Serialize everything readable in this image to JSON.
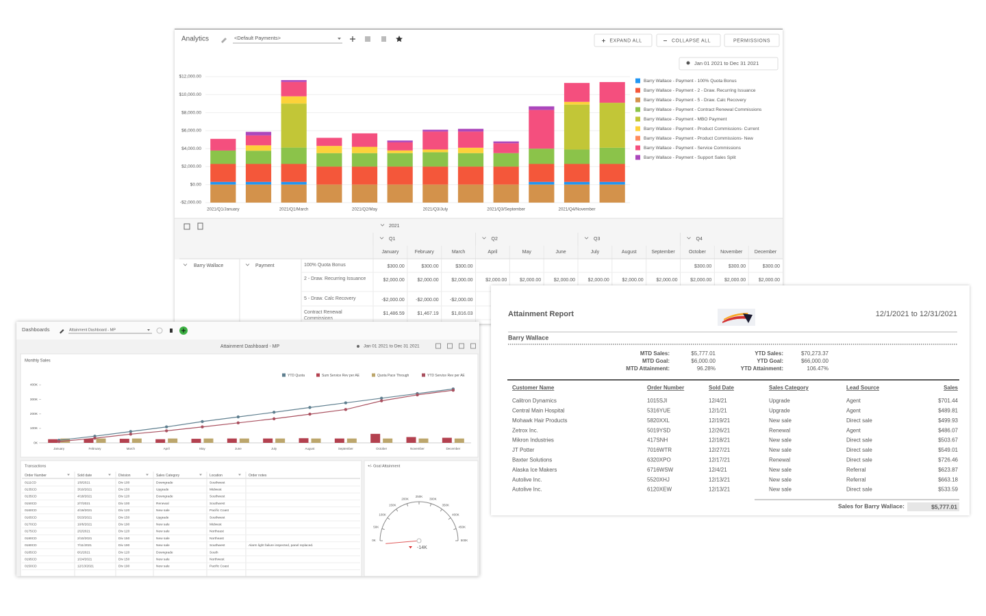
{
  "analytics": {
    "title": "Analytics",
    "view": "<Default Payments>",
    "buttons": [
      "EXPAND ALL",
      "COLLAPSE ALL",
      "PERMISSIONS"
    ],
    "date_range": "Jan 01 2021 to Dec 31 2021",
    "chart": {
      "type": "bar",
      "stacked": true,
      "categories": [
        "2021/Q1/January",
        null,
        "2021/Q1/March",
        null,
        "2021/Q2/May",
        null,
        "2021/Q3/July",
        null,
        "2021/Q3/September",
        null,
        "2021/Q4/November",
        null
      ],
      "series": [
        {
          "name": "Barry Wallace - Payment - 100% Quota Bonus",
          "color": "#2196f3",
          "values": [
            300,
            300,
            300,
            0,
            0,
            0,
            0,
            0,
            0,
            300,
            300,
            300
          ]
        },
        {
          "name": "Barry Wallace - Payment - 2 - Draw. Recurring Issuance",
          "color": "#f4573a",
          "values": [
            2000,
            2000,
            2000,
            2000,
            2000,
            2000,
            2000,
            2000,
            2000,
            2000,
            2000,
            2000
          ]
        },
        {
          "name": "Barry Wallace - Payment - 5 - Draw. Calc Recovery",
          "color": "#d3924b",
          "values": [
            -2000,
            -2000,
            -2000,
            -2000,
            -2000,
            -2000,
            -2000,
            -2000,
            -2000,
            -2000,
            -2000,
            -2000
          ]
        },
        {
          "name": "Barry Wallace - Payment - Contract Renewal Commissions",
          "color": "#8bc34a",
          "values": [
            1487,
            1467,
            1816,
            1500,
            1500,
            1500,
            1600,
            1500,
            1500,
            1700,
            1600,
            1800
          ]
        },
        {
          "name": "Barry Wallace - Payment - MBO Payment",
          "color": "#c2c637",
          "values": [
            0,
            0,
            4900,
            0,
            0,
            0,
            0,
            0,
            0,
            0,
            5000,
            5000
          ]
        },
        {
          "name": "Barry Wallace - Payment - Product Commissions- Current",
          "color": "#fdd23a",
          "values": [
            0,
            600,
            800,
            800,
            700,
            300,
            300,
            600,
            0,
            0,
            300,
            0
          ]
        },
        {
          "name": "Barry Wallace - Payment - Product Commissions- New",
          "color": "#ff8a5c",
          "values": [
            0,
            0,
            0,
            0,
            0,
            0,
            0,
            0,
            0,
            0,
            0,
            0
          ]
        },
        {
          "name": "Barry Wallace - Payment - Service Commissions",
          "color": "#f44f7e",
          "values": [
            1300,
            1100,
            1600,
            900,
            1500,
            900,
            2000,
            1800,
            1100,
            4300,
            2100,
            2300
          ]
        },
        {
          "name": "Barry Wallace - Payment - Support Sales Split",
          "color": "#ab47bc",
          "values": [
            0,
            400,
            200,
            0,
            0,
            200,
            200,
            300,
            200,
            400,
            0,
            0
          ]
        }
      ],
      "ylim": [
        -2000,
        12000
      ],
      "yticks": [
        {
          "value": -2000,
          "label": "-$2,000.00"
        },
        {
          "value": 0,
          "label": "$0.00"
        },
        {
          "value": 2000,
          "label": "$2,000.00"
        },
        {
          "value": 4000,
          "label": "$4,000.00"
        },
        {
          "value": 6000,
          "label": "$6,000.00"
        },
        {
          "value": 8000,
          "label": "$8,000.00"
        },
        {
          "value": 10000,
          "label": "$10,000.00"
        },
        {
          "value": 12000,
          "label": "$12,000.00"
        }
      ],
      "grid": true
    },
    "pivot": {
      "year": "2021",
      "quarters": [
        "Q1",
        "Q2",
        "Q3",
        "Q4"
      ],
      "months": [
        "January",
        "February",
        "March",
        "April",
        "May",
        "June",
        "July",
        "August",
        "September",
        "October",
        "November",
        "December"
      ],
      "person": "Barry Wallace",
      "field": "Payment",
      "rows": [
        {
          "label": "100% Quota Bonus",
          "values": [
            "$300.00",
            "$300.00",
            "$300.00",
            null,
            null,
            null,
            null,
            null,
            null,
            "$300.00",
            "$300.00",
            "$300.00"
          ]
        },
        {
          "label": "2 - Draw. Recurring Issuance",
          "values": [
            "$2,000.00",
            "$2,000.00",
            "$2,000.00",
            "$2,000.00",
            "$2,000.00",
            "$2,000.00",
            "$2,000.00",
            "$2,000.00",
            "$2,000.00",
            "$2,000.00",
            "$2,000.00",
            "$2,000.00"
          ]
        },
        {
          "label": "5 - Draw. Calc Recovery",
          "values": [
            "-$2,000.00",
            "-$2,000.00",
            "-$2,000.00"
          ]
        },
        {
          "label": "Contract Renewal Commissions",
          "values": [
            "$1,486.59",
            "$1,467.19",
            "$1,816.03"
          ]
        }
      ]
    }
  },
  "dashboard": {
    "title": "Dashboards",
    "view": "Attainment Dashboard - MP",
    "heading": "Attainment Dashboard - MP",
    "date_range": "Jan 01 2021 to Dec 31 2021",
    "chart": {
      "type": "combo",
      "title": "Monthly Sales",
      "categories": [
        "January",
        "February",
        "March",
        "April",
        "May",
        "June",
        "July",
        "August",
        "September",
        "October",
        "November",
        "December"
      ],
      "series": [
        {
          "name": "YTD Quota",
          "color": "#5f7f8f",
          "type": "line",
          "values": [
            18,
            46,
            78,
            110,
            147,
            179,
            211,
            244,
            276,
            308,
            340,
            372
          ]
        },
        {
          "name": "Sum Service Rev per AE",
          "color": "#b3414f",
          "type": "bar",
          "values": [
            25,
            28,
            28,
            25,
            28,
            30,
            30,
            32,
            30,
            62,
            40,
            35
          ]
        },
        {
          "name": "Quota Pace Through",
          "color": "#bca66c",
          "type": "bar",
          "values": [
            30,
            30,
            30,
            30,
            30,
            30,
            30,
            30,
            30,
            30,
            30,
            30
          ]
        },
        {
          "name": "YTD Service Rev per AE",
          "color": "#a9505f",
          "type": "line",
          "values": [
            9,
            32,
            60,
            83,
            110,
            138,
            166,
            198,
            230,
            290,
            331,
            363
          ]
        }
      ],
      "ylim": [
        0,
        430
      ],
      "yticks": [
        {
          "value": 0,
          "label": "0K"
        },
        {
          "value": 100,
          "label": "100K"
        },
        {
          "value": 200,
          "label": "200K"
        },
        {
          "value": 300,
          "label": "300K"
        },
        {
          "value": 400,
          "label": "400K"
        }
      ],
      "grid": false
    },
    "transactions": {
      "title": "Transactions",
      "columns": [
        "Order Number",
        "Sold date",
        "Division",
        "Sales Category",
        "Location",
        "Order notes"
      ],
      "rows": [
        [
          "0111CD",
          "1/9/2021",
          "Div 100",
          "Downgrade",
          "Southwest",
          null
        ],
        [
          "0135CD",
          "3/10/2021",
          "Div 150",
          "Upgrade",
          "Midwest",
          null
        ],
        [
          "0135CD",
          "4/18/2021",
          "Div 120",
          "Downgrade",
          "Southwest",
          null
        ],
        [
          "0150CD",
          "2/7/2021",
          "Div 100",
          "Renewal",
          "Southwest",
          null
        ],
        [
          "0160CD",
          "4/19/2021",
          "Div 120",
          "New sale",
          "Pacific Coast",
          null
        ],
        [
          "0165CD",
          "5/23/2021",
          "Div 150",
          "Upgrade",
          "Southwest",
          null
        ],
        [
          "0170CD",
          "10/6/2021",
          "Div 190",
          "New sale",
          "Midwest",
          null
        ],
        [
          "0175CD",
          "2/2/2021",
          "Div 120",
          "New sale",
          "Northeast",
          null
        ],
        [
          "0180CD",
          "2/10/2021",
          "Div 150",
          "New sale",
          "Northeast",
          null
        ],
        [
          "0180CD",
          "7/11/2021",
          "Div 190",
          "New sale",
          "Southwest",
          "Alarm light failure inspected, panel replaced."
        ],
        [
          "0185CD",
          "6/1/2021",
          "Div 120",
          "Downgrade",
          "South",
          null
        ],
        [
          "0195CD",
          "1/24/2021",
          "Div 150",
          "New sale",
          "Northwest",
          null
        ],
        [
          "0150CD",
          "12/13/2021",
          "Div 190",
          "New sale",
          "Pacific Coast",
          null
        ]
      ]
    },
    "gauge": {
      "type": "gauge",
      "title": "+/- Goal Attainment",
      "value": -14,
      "value_label": "-14K",
      "lim": [
        0,
        500
      ],
      "ticks": [
        {
          "value": 0,
          "label": "0K"
        },
        {
          "value": 50,
          "label": "50K"
        },
        {
          "value": 100,
          "label": "100K"
        },
        {
          "value": 150,
          "label": "150K"
        },
        {
          "value": 200,
          "label": "200K"
        },
        {
          "value": 250,
          "label": "250K"
        },
        {
          "value": 300,
          "label": "300K"
        },
        {
          "value": 350,
          "label": "350K"
        },
        {
          "value": 400,
          "label": "400K"
        },
        {
          "value": 450,
          "label": "450K"
        },
        {
          "value": 500,
          "label": "500K"
        }
      ]
    }
  },
  "report": {
    "title": "Attainment Report",
    "period": "12/1/2021 to 12/31/2021",
    "person": "Barry Wallace",
    "summary_left": [
      [
        "MTD Sales:",
        "$5,777.01"
      ],
      [
        "MTD Goal:",
        "$6,000.00"
      ],
      [
        "MTD Attainment:",
        "96.28%"
      ]
    ],
    "summary_right": [
      [
        "YTD Sales:",
        "$70,273.37"
      ],
      [
        "YTD Goal:",
        "$66,000.00"
      ],
      [
        "YTD Attainment:",
        "106.47%"
      ]
    ],
    "columns": [
      "Customer Name",
      "Order Number",
      "Sold Date",
      "Sales Category",
      "Lead Source",
      "Sales"
    ],
    "rows": [
      [
        "Calitron Dynamics",
        "1015SJI",
        "12/4/21",
        "Upgrade",
        "Agent",
        "$701.44"
      ],
      [
        "Central Main Hospital",
        "5316YUE",
        "12/1/21",
        "Upgrade",
        "Agent",
        "$489.81"
      ],
      [
        "Mohawk Hair Products",
        "5820XXL",
        "12/19/21",
        "New sale",
        "Direct sale",
        "$499.93"
      ],
      [
        "Zetrox Inc.",
        "5019YSD",
        "12/26/21",
        "Renewal",
        "Agent",
        "$486.07"
      ],
      [
        "Mikron Industries",
        "417SNH",
        "12/18/21",
        "New sale",
        "Direct sale",
        "$503.67"
      ],
      [
        "JT Potter",
        "7016WTR",
        "12/27/21",
        "New sale",
        "Direct sale",
        "$549.01"
      ],
      [
        "Baxter Solutions",
        "6320XPO",
        "12/17/21",
        "Renewal",
        "Direct sale",
        "$726.46"
      ],
      [
        "Alaska Ice Makers",
        "6716WSW",
        "12/4/21",
        "New sale",
        "Referral",
        "$623.87"
      ],
      [
        "Autolive Inc.",
        "5520XHJ",
        "12/13/21",
        "New sale",
        "Referral",
        "$663.18"
      ],
      [
        "Autolive Inc.",
        "6120XEW",
        "12/13/21",
        "New sale",
        "Direct sale",
        "$533.59"
      ]
    ],
    "total_label": "Sales for Barry Wallace:",
    "total": "$5,777.01"
  }
}
